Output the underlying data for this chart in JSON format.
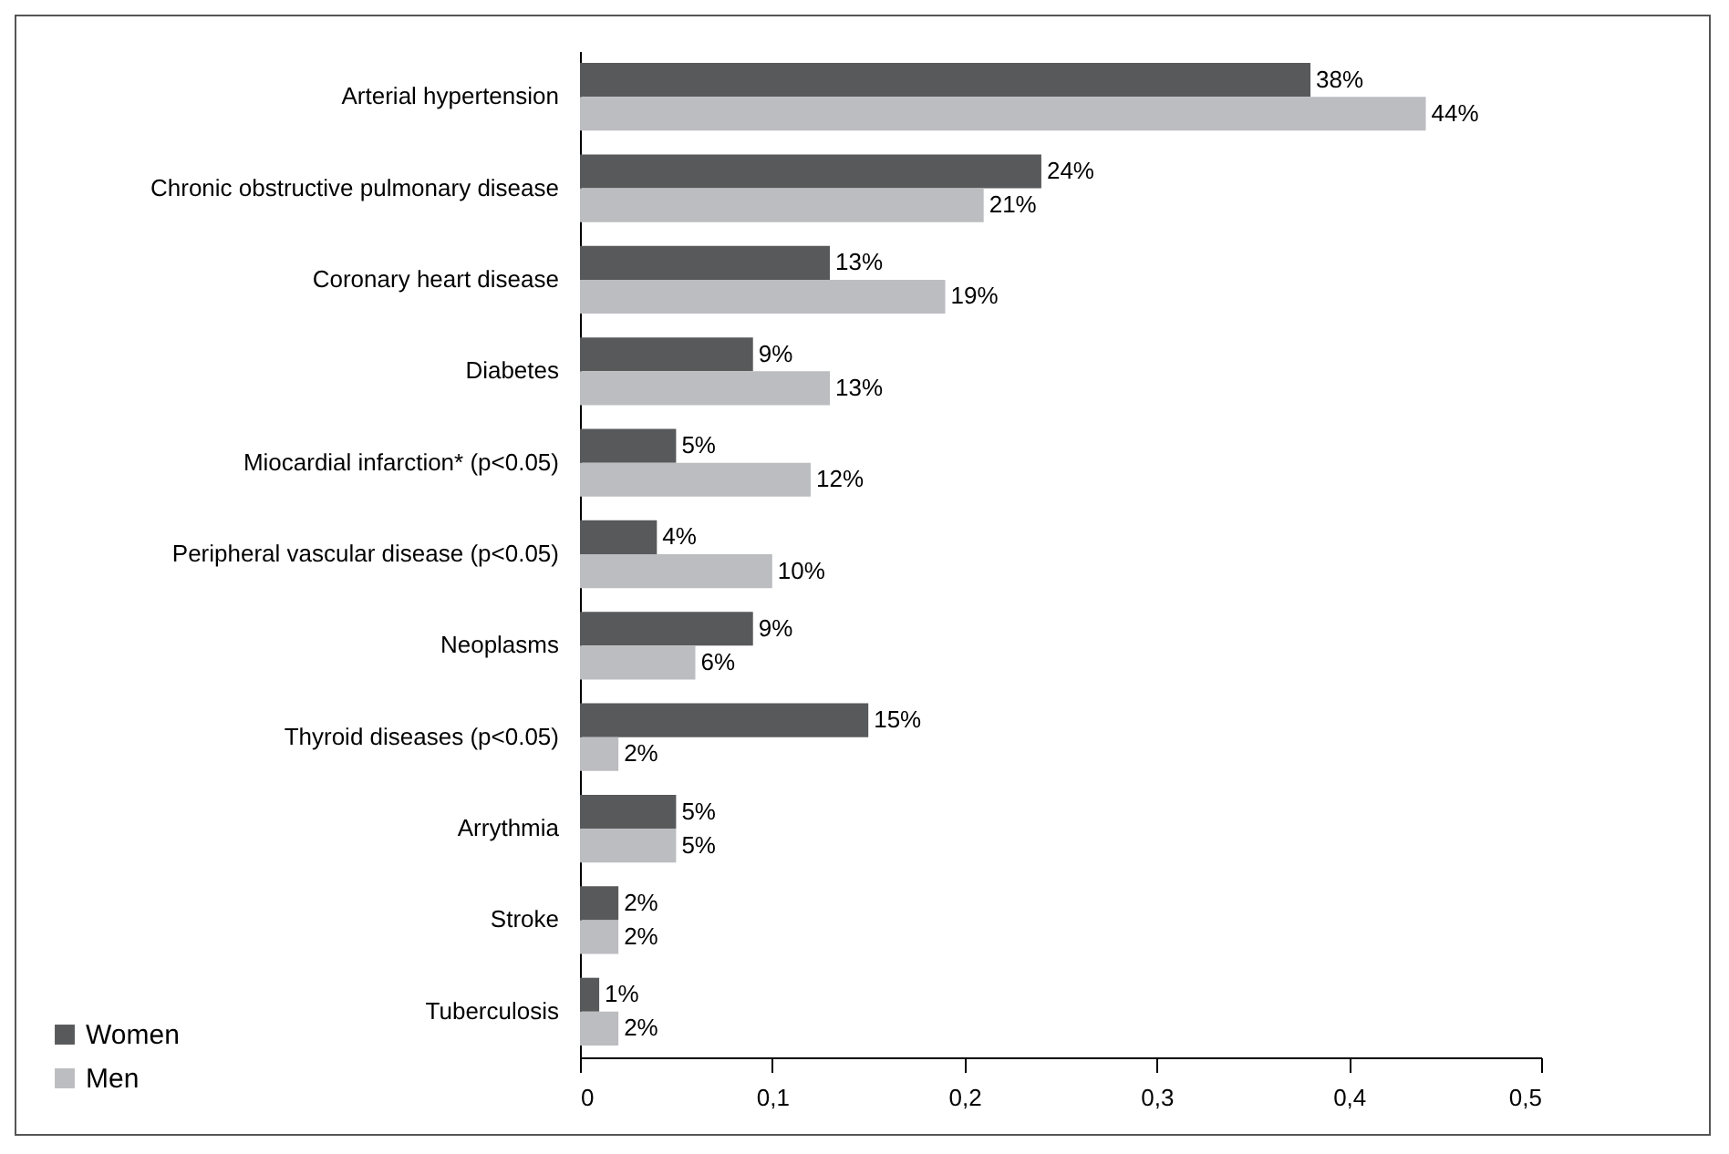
{
  "chart_data": {
    "type": "bar",
    "orientation": "horizontal",
    "categories": [
      "Arterial hypertension",
      "Chronic obstructive pulmonary disease",
      "Coronary heart disease",
      "Diabetes",
      "Miocardial infarction* (p<0.05)",
      "Peripheral vascular disease (p<0.05)",
      "Neoplasms",
      "Thyroid diseases  (p<0.05)",
      "Arrythmia",
      "Stroke",
      "Tuberculosis"
    ],
    "series": [
      {
        "name": "Women",
        "color": "#58595b",
        "values": [
          0.38,
          0.24,
          0.13,
          0.09,
          0.05,
          0.04,
          0.09,
          0.15,
          0.05,
          0.02,
          0.01
        ],
        "value_labels": [
          "38%",
          "24%",
          "13%",
          "9%",
          "5%",
          "4%",
          "9%",
          "15%",
          "5%",
          "2%",
          "1%"
        ]
      },
      {
        "name": "Men",
        "color": "#bcbdc0",
        "values": [
          0.44,
          0.21,
          0.19,
          0.13,
          0.12,
          0.1,
          0.06,
          0.02,
          0.05,
          0.02,
          0.02
        ],
        "value_labels": [
          "44%",
          "21%",
          "19%",
          "13%",
          "12%",
          "10%",
          "6%",
          "2%",
          "5%",
          "2%",
          "2%"
        ]
      }
    ],
    "xlim": [
      0,
      0.5
    ],
    "xticks": [
      {
        "value": 0,
        "label": "0"
      },
      {
        "value": 0.1,
        "label": "0,1"
      },
      {
        "value": 0.2,
        "label": "0,2"
      },
      {
        "value": 0.3,
        "label": "0,3"
      },
      {
        "value": 0.4,
        "label": "0,4"
      },
      {
        "value": 0.5,
        "label": "0,5"
      }
    ],
    "grid": false,
    "legend": "bottom left"
  }
}
